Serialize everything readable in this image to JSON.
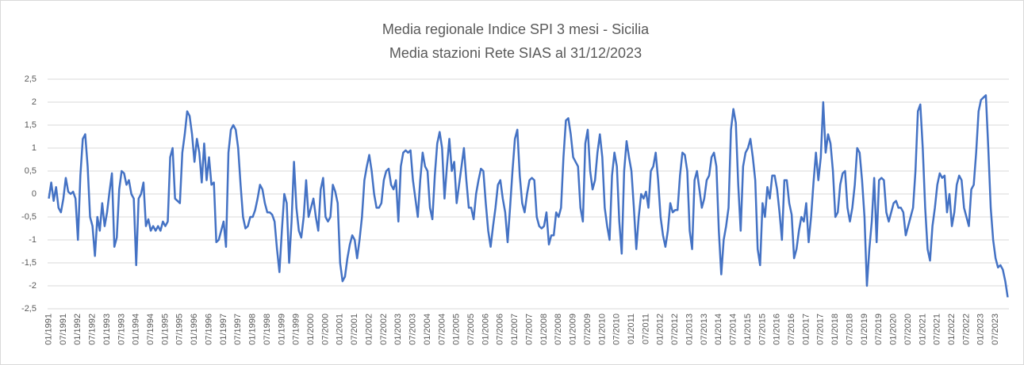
{
  "chart_data": {
    "type": "line",
    "title": "Media regionale Indice SPI 3 mesi - Sicilia",
    "subtitle": "Media stazioni Rete SIAS al 31/12/2023",
    "color": "#4472c4",
    "grid": true,
    "ylim": [
      -2.5,
      2.5
    ],
    "yticks": [
      {
        "value": 2.5,
        "label": "2,5"
      },
      2,
      {
        "value": 1.5,
        "label": "1,5"
      },
      1,
      {
        "value": 0.5,
        "label": "0,5"
      },
      0,
      {
        "value": -0.5,
        "label": "-0,5"
      },
      -1,
      {
        "value": -1.5,
        "label": "-1,5"
      },
      -2,
      {
        "value": -2.5,
        "label": "-2,5"
      }
    ],
    "categories": [
      "01/1991",
      null,
      null,
      null,
      null,
      null,
      "07/1991",
      null,
      null,
      null,
      null,
      null,
      "01/1992",
      null,
      null,
      null,
      null,
      null,
      "07/1992",
      null,
      null,
      null,
      null,
      null,
      "01/1993",
      null,
      null,
      null,
      null,
      null,
      "07/1993",
      null,
      null,
      null,
      null,
      null,
      "01/1994",
      null,
      null,
      null,
      null,
      null,
      "07/1994",
      null,
      null,
      null,
      null,
      null,
      "01/1995",
      null,
      null,
      null,
      null,
      null,
      "07/1995",
      null,
      null,
      null,
      null,
      null,
      "01/1996",
      null,
      null,
      null,
      null,
      null,
      "07/1996",
      null,
      null,
      null,
      null,
      null,
      "01/1997",
      null,
      null,
      null,
      null,
      null,
      "07/1997",
      null,
      null,
      null,
      null,
      null,
      "01/1998",
      null,
      null,
      null,
      null,
      null,
      "07/1998",
      null,
      null,
      null,
      null,
      null,
      "01/1999",
      null,
      null,
      null,
      null,
      null,
      "07/1999",
      null,
      null,
      null,
      null,
      null,
      "01/2000",
      null,
      null,
      null,
      null,
      null,
      "07/2000",
      null,
      null,
      null,
      null,
      null,
      "01/2001",
      null,
      null,
      null,
      null,
      null,
      "07/2001",
      null,
      null,
      null,
      null,
      null,
      "01/2002",
      null,
      null,
      null,
      null,
      null,
      "07/2002",
      null,
      null,
      null,
      null,
      null,
      "01/2003",
      null,
      null,
      null,
      null,
      null,
      "07/2003",
      null,
      null,
      null,
      null,
      null,
      "01/2004",
      null,
      null,
      null,
      null,
      null,
      "07/2004",
      null,
      null,
      null,
      null,
      null,
      "01/2005",
      null,
      null,
      null,
      null,
      null,
      "07/2005",
      null,
      null,
      null,
      null,
      null,
      "01/2006",
      null,
      null,
      null,
      null,
      null,
      "07/2006",
      null,
      null,
      null,
      null,
      null,
      "01/2007",
      null,
      null,
      null,
      null,
      null,
      "07/2007",
      null,
      null,
      null,
      null,
      null,
      "01/2008",
      null,
      null,
      null,
      null,
      null,
      "07/2008",
      null,
      null,
      null,
      null,
      null,
      "01/2009",
      null,
      null,
      null,
      null,
      null,
      "07/2009",
      null,
      null,
      null,
      null,
      null,
      "01/2010",
      null,
      null,
      null,
      null,
      null,
      "07/2010",
      null,
      null,
      null,
      null,
      null,
      "01/2011",
      null,
      null,
      null,
      null,
      null,
      "07/2011",
      null,
      null,
      null,
      null,
      null,
      "01/2012",
      null,
      null,
      null,
      null,
      null,
      "07/2012",
      null,
      null,
      null,
      null,
      null,
      "01/2013",
      null,
      null,
      null,
      null,
      null,
      "07/2013",
      null,
      null,
      null,
      null,
      null,
      "01/2014",
      null,
      null,
      null,
      null,
      null,
      "07/2014",
      null,
      null,
      null,
      null,
      null,
      "01/2015",
      null,
      null,
      null,
      null,
      null,
      "07/2015",
      null,
      null,
      null,
      null,
      null,
      "01/2016",
      null,
      null,
      null,
      null,
      null,
      "07/2016",
      null,
      null,
      null,
      null,
      null,
      "01/2017",
      null,
      null,
      null,
      null,
      null,
      "07/2017",
      null,
      null,
      null,
      null,
      null,
      "01/2018",
      null,
      null,
      null,
      null,
      null,
      "07/2018",
      null,
      null,
      null,
      null,
      null,
      "01/2019",
      null,
      null,
      null,
      null,
      null,
      "07/2019",
      null,
      null,
      null,
      null,
      null,
      "01/2020",
      null,
      null,
      null,
      null,
      null,
      "07/2020",
      null,
      null,
      null,
      null,
      null,
      "01/2021",
      null,
      null,
      null,
      null,
      null,
      "07/2021",
      null,
      null,
      null,
      null,
      null,
      "01/2022",
      null,
      null,
      null,
      null,
      null,
      "07/2022",
      null,
      null,
      null,
      null,
      null,
      "01/2023",
      null,
      null,
      null,
      null,
      null,
      "07/2023",
      null,
      null,
      null,
      null,
      null
    ],
    "values": [
      -0.1,
      0.25,
      -0.15,
      0.15,
      -0.3,
      -0.4,
      -0.1,
      0.35,
      0.05,
      0,
      0.05,
      -0.1,
      -1.0,
      0.4,
      1.2,
      1.3,
      0.6,
      -0.5,
      -0.7,
      -1.35,
      -0.5,
      -0.8,
      -0.2,
      -0.7,
      -0.4,
      0.05,
      0.45,
      -1.15,
      -0.95,
      0.1,
      0.5,
      0.45,
      0.2,
      0.3,
      0,
      -0.1,
      -1.55,
      -0.1,
      0,
      0.25,
      -0.7,
      -0.55,
      -0.8,
      -0.7,
      -0.8,
      -0.7,
      -0.8,
      -0.6,
      -0.7,
      -0.6,
      0.8,
      1.0,
      -0.1,
      -0.15,
      -0.2,
      0.9,
      1.3,
      1.8,
      1.7,
      1.3,
      0.7,
      1.2,
      0.9,
      0.25,
      1.1,
      0.3,
      0.8,
      0.2,
      0.25,
      -1.05,
      -1.0,
      -0.8,
      -0.6,
      -1.15,
      0.9,
      1.4,
      1.5,
      1.4,
      1.0,
      0.2,
      -0.5,
      -0.75,
      -0.7,
      -0.5,
      -0.5,
      -0.35,
      -0.1,
      0.2,
      0.1,
      -0.2,
      -0.4,
      -0.4,
      -0.45,
      -0.6,
      -1.2,
      -1.7,
      -0.8,
      0.0,
      -0.2,
      -1.5,
      -0.6,
      0.7,
      -0.3,
      -0.8,
      -0.95,
      -0.5,
      0.3,
      -0.5,
      -0.3,
      -0.1,
      -0.5,
      -0.8,
      0.1,
      0.35,
      -0.5,
      -0.6,
      -0.5,
      0.2,
      0.05,
      -0.2,
      -1.5,
      -1.9,
      -1.8,
      -1.4,
      -1.1,
      -0.9,
      -1.0,
      -1.4,
      -1.0,
      -0.5,
      0.3,
      0.6,
      0.85,
      0.5,
      0,
      -0.3,
      -0.3,
      -0.2,
      0.3,
      0.5,
      0.55,
      0.2,
      0.1,
      0.3,
      -0.6,
      0.6,
      0.9,
      0.95,
      0.9,
      0.95,
      0.3,
      -0.1,
      -0.5,
      0.3,
      0.9,
      0.6,
      0.5,
      -0.3,
      -0.55,
      0.4,
      1.1,
      1.35,
      1.0,
      -0.1,
      0.6,
      1.2,
      0.5,
      0.7,
      -0.2,
      0.2,
      0.6,
      1.0,
      0.3,
      -0.3,
      -0.3,
      -0.55,
      0.0,
      0.3,
      0.55,
      0.5,
      -0.2,
      -0.8,
      -1.15,
      -0.7,
      -0.3,
      0.2,
      0.3,
      -0.1,
      -0.4,
      -1.05,
      -0.3,
      0.5,
      1.2,
      1.4,
      0.4,
      -0.2,
      -0.4,
      0,
      0.3,
      0.35,
      0.3,
      -0.5,
      -0.7,
      -0.75,
      -0.7,
      -0.4,
      -1.1,
      -0.9,
      -0.9,
      -0.4,
      -0.5,
      -0.3,
      0.8,
      1.6,
      1.65,
      1.3,
      0.8,
      0.7,
      0.6,
      -0.3,
      -0.6,
      1.1,
      1.4,
      0.5,
      0.1,
      0.3,
      0.9,
      1.3,
      0.8,
      -0.3,
      -0.7,
      -1.0,
      0.4,
      0.9,
      0.6,
      -0.6,
      -1.3,
      0.5,
      1.15,
      0.8,
      0.5,
      -0.3,
      -1.2,
      -0.5,
      0,
      -0.1,
      0.05,
      -0.3,
      0.5,
      0.6,
      0.9,
      0.3,
      -0.5,
      -0.9,
      -1.15,
      -0.8,
      -0.2,
      -0.4,
      -0.35,
      -0.35,
      0.4,
      0.9,
      0.85,
      0.5,
      -0.8,
      -1.2,
      0.3,
      0.5,
      0.1,
      -0.3,
      -0.1,
      0.3,
      0.4,
      0.8,
      0.9,
      0.6,
      -0.8,
      -1.75,
      -1.0,
      -0.7,
      -0.3,
      1.4,
      1.85,
      1.55,
      0.2,
      -0.8,
      0.6,
      0.9,
      1.0,
      1.2,
      0.8,
      0.3,
      -1.2,
      -1.55,
      -0.2,
      -0.5,
      0.15,
      -0.1,
      0.4,
      0.4,
      0.1,
      -0.4,
      -1.0,
      0.3,
      0.3,
      -0.2,
      -0.45,
      -1.4,
      -1.2,
      -0.8,
      -0.5,
      -0.6,
      -0.2,
      -1.05,
      -0.5,
      0.25,
      0.9,
      0.3,
      0.8,
      2.0,
      0.9,
      1.3,
      1.1,
      0.5,
      -0.5,
      -0.4,
      0.2,
      0.45,
      0.5,
      -0.3,
      -0.6,
      -0.3,
      0.2,
      1.0,
      0.9,
      0.3,
      -0.5,
      -2.0,
      -1.2,
      -0.6,
      0.35,
      -1.05,
      0.3,
      0.35,
      0.3,
      -0.4,
      -0.6,
      -0.4,
      -0.2,
      -0.15,
      -0.3,
      -0.3,
      -0.4,
      -0.9,
      -0.7,
      -0.5,
      -0.3,
      0.5,
      1.8,
      1.95,
      1.0,
      -0.3,
      -1.2,
      -1.45,
      -0.7,
      -0.3,
      0.2,
      0.45,
      0.35,
      0.4,
      -0.4,
      0.0,
      -0.7,
      -0.4,
      0.2,
      0.4,
      0.3,
      -0.3,
      -0.5,
      -0.7,
      0.1,
      0.2,
      0.9,
      1.8,
      2.05,
      2.1,
      2.15,
      1.0,
      -0.3,
      -1.0,
      -1.4,
      -1.6,
      -1.55,
      -1.65,
      -1.9,
      -2.25
    ]
  }
}
